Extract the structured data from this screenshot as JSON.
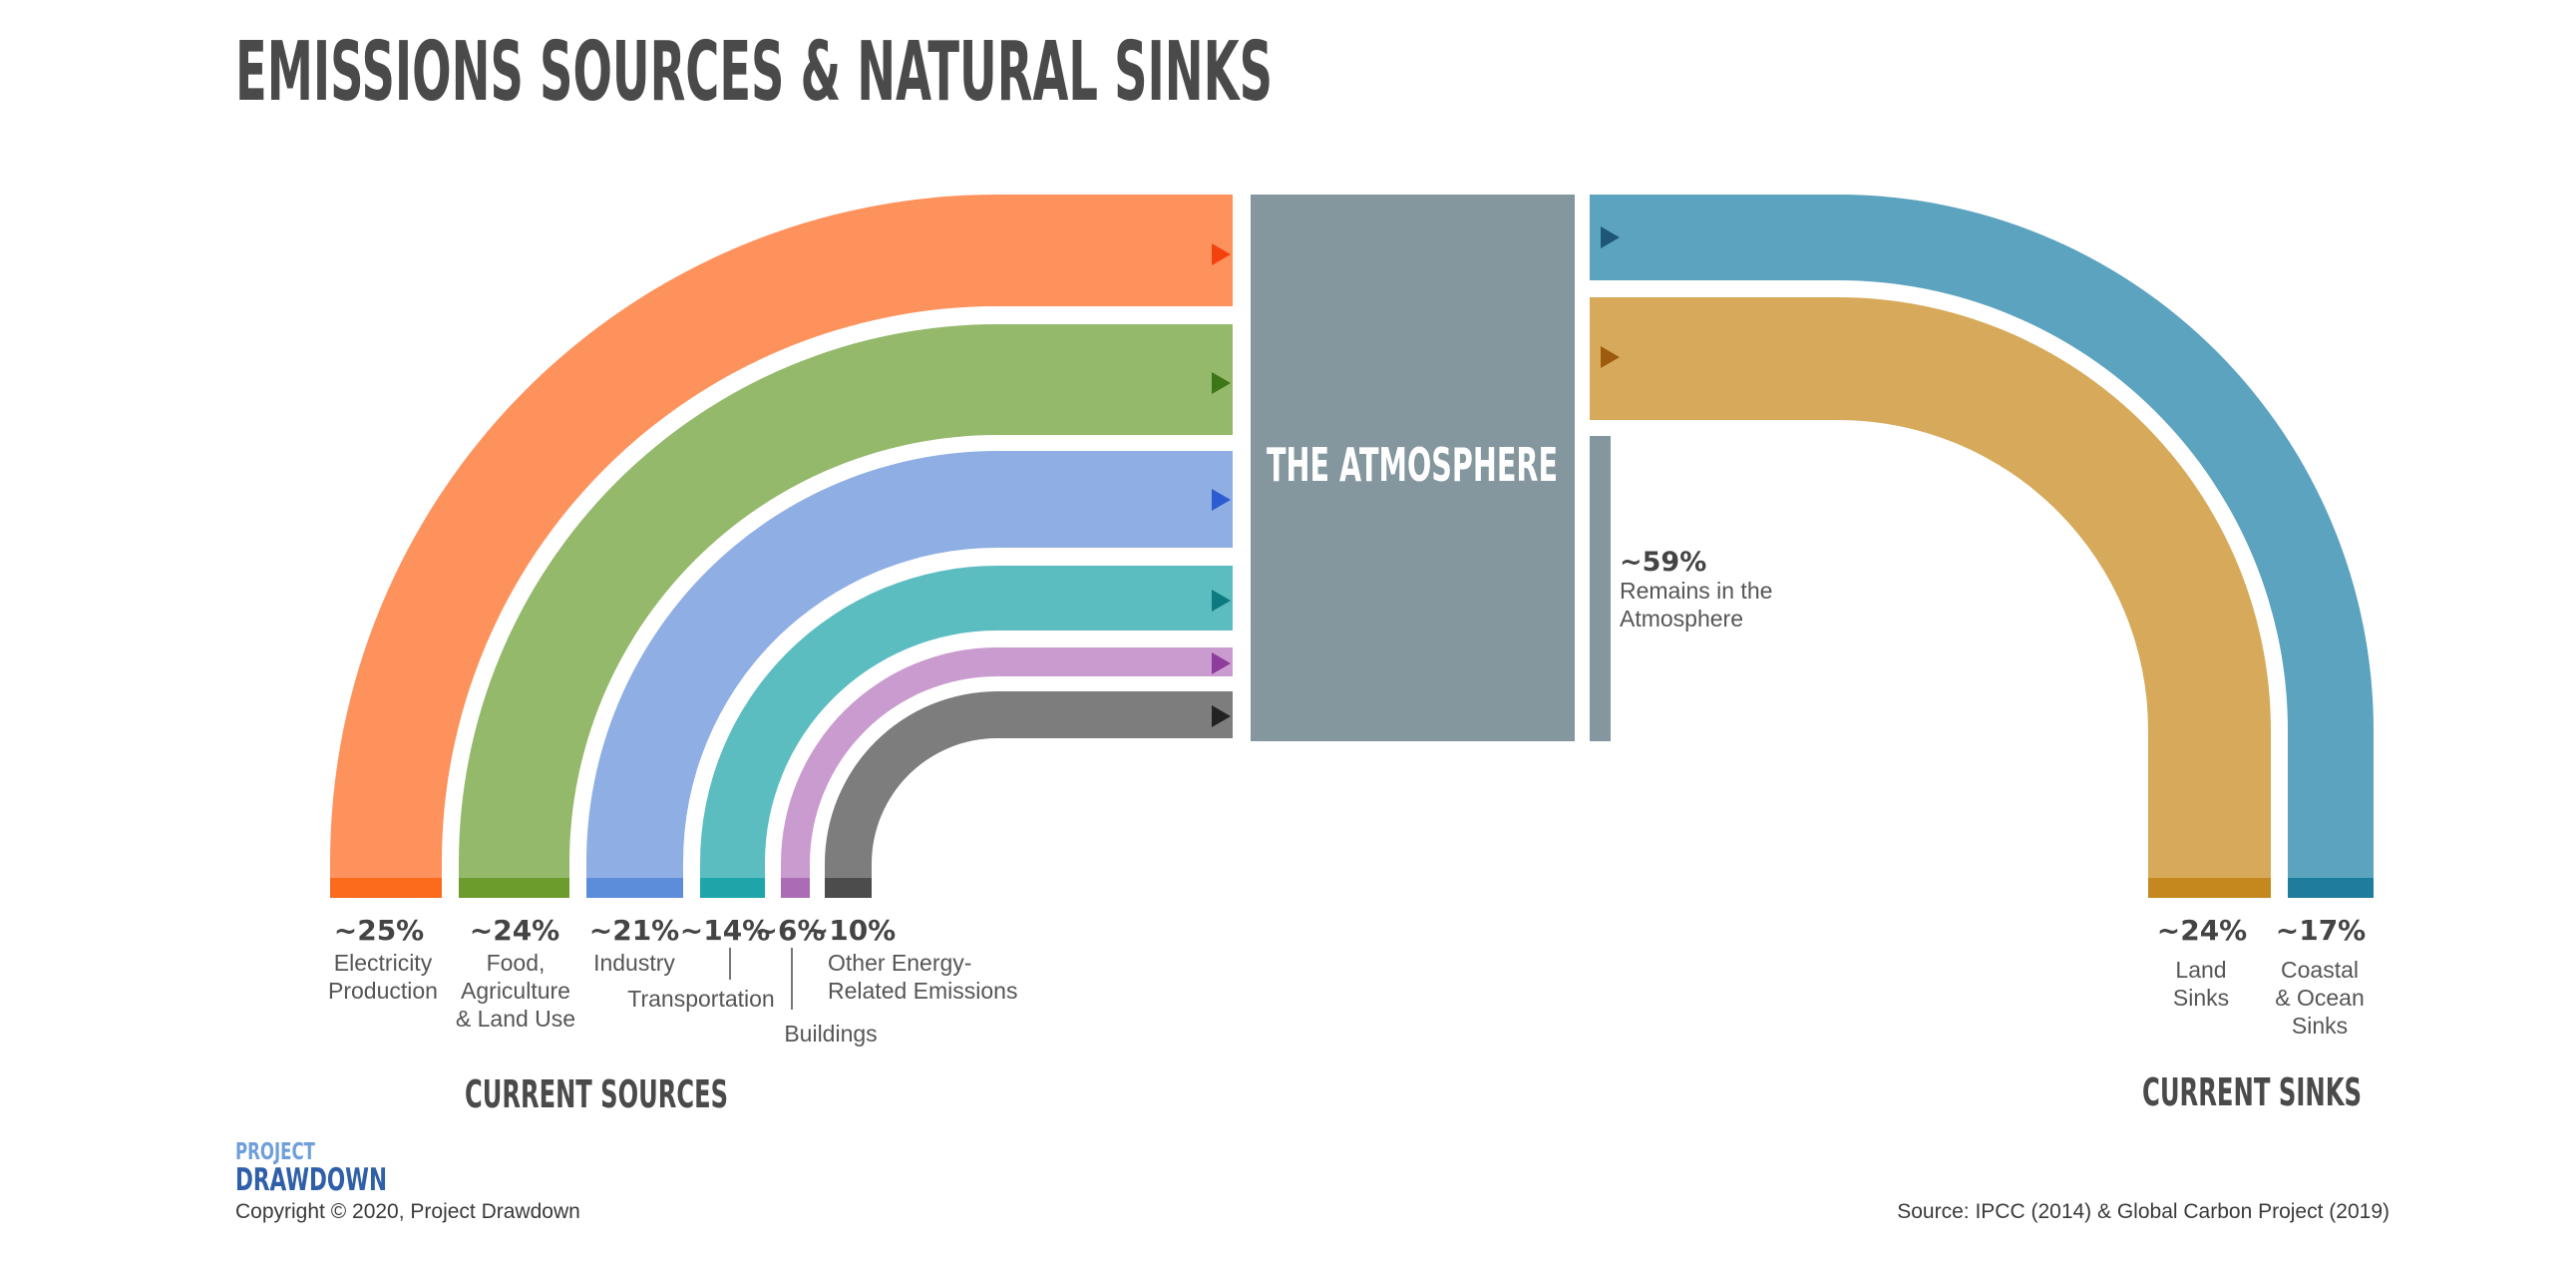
{
  "title": "EMISSIONS SOURCES & NATURAL SINKS",
  "atmosphere": {
    "label": "THE ATMOSPHERE",
    "color": "#84979e"
  },
  "remains": {
    "percent": "~59%",
    "label_line1": "Remains in the",
    "label_line2": "Atmosphere"
  },
  "sources": [
    {
      "percent": "~25%",
      "label": [
        "Electricity",
        "Production"
      ],
      "color": "#fd925d",
      "base_color": "#fc6a1c",
      "arrow_color": "#f4420f"
    },
    {
      "percent": "~24%",
      "label": [
        "Food,",
        "Agriculture",
        "& Land Use"
      ],
      "color": "#94b96b",
      "base_color": "#6b9c2c",
      "arrow_color": "#3d7616"
    },
    {
      "percent": "~21%",
      "label": [
        "Industry"
      ],
      "color": "#8eaee4",
      "base_color": "#5b8ddb",
      "arrow_color": "#2c5ccf"
    },
    {
      "percent": "~14%",
      "label": [
        "Transportation"
      ],
      "color": "#5cbdc1",
      "base_color": "#1ea5a9",
      "arrow_color": "#0d7a80"
    },
    {
      "percent": "~6%",
      "label": [
        "Buildings"
      ],
      "color": "#c99bce",
      "base_color": "#ac6bb5",
      "arrow_color": "#8e3b9b"
    },
    {
      "percent": "~10%",
      "label": [
        "Other Energy-",
        "Related Emissions"
      ],
      "color": "#7d7d7d",
      "base_color": "#4c4c4c",
      "arrow_color": "#222222"
    }
  ],
  "sinks": [
    {
      "percent": "~24%",
      "label": [
        "Land",
        "Sinks"
      ],
      "color": "#d6aa5a",
      "base_color": "#c4881e",
      "arrow_color": "#9d5b0e"
    },
    {
      "percent": "~17%",
      "label": [
        "Coastal",
        "& Ocean",
        "Sinks"
      ],
      "color": "#5ca3bf",
      "base_color": "#1e7d9d",
      "arrow_color": "#1d5677"
    }
  ],
  "current_sources": "CURRENT SOURCES",
  "current_sinks": "CURRENT SINKS",
  "logo": {
    "line1": "PROJECT",
    "line2": "DRAWDOWN"
  },
  "copyright": "Copyright © 2020, Project Drawdown",
  "source": "Source: IPCC (2014) & Global Carbon Project (2019)"
}
